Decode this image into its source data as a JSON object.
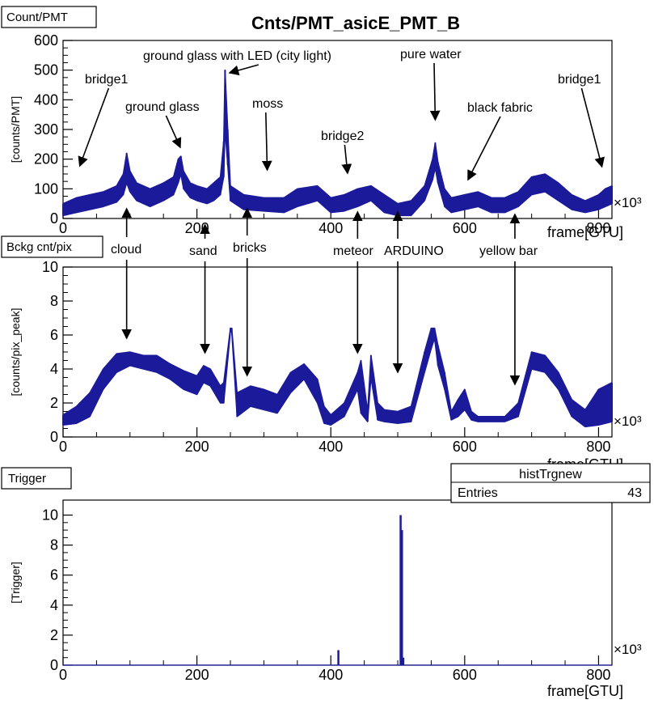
{
  "title": "Cnts/PMT_asicE_PMT_B",
  "axis_exponent": "×10³",
  "stats_box": {
    "title": "histTrgnew",
    "entries_label": "Entries",
    "entries_value": "43"
  },
  "colors": {
    "series": "#1a1a9a",
    "axis": "#000000"
  },
  "chart_data": [
    {
      "type": "area",
      "panel_label": "Count/PMT",
      "ylabel": "[counts/PMT]",
      "xlabel": "frame[GTU]",
      "xlim": [
        0,
        820
      ],
      "ylim": [
        0,
        600
      ],
      "x_ticks": [
        0,
        200,
        400,
        600,
        800
      ],
      "y_ticks": [
        0,
        100,
        200,
        300,
        400,
        500,
        600
      ],
      "x": [
        0,
        20,
        40,
        60,
        80,
        90,
        95,
        100,
        110,
        130,
        150,
        165,
        172,
        176,
        180,
        190,
        200,
        215,
        225,
        235,
        240,
        242,
        246,
        250,
        270,
        300,
        330,
        350,
        380,
        400,
        420,
        440,
        460,
        480,
        500,
        520,
        540,
        552,
        556,
        560,
        570,
        580,
        600,
        620,
        640,
        660,
        680,
        700,
        720,
        740,
        760,
        780,
        800,
        810,
        820
      ],
      "low": [
        10,
        20,
        30,
        40,
        55,
        80,
        120,
        90,
        60,
        40,
        60,
        80,
        120,
        150,
        100,
        70,
        60,
        50,
        60,
        80,
        140,
        300,
        180,
        60,
        30,
        25,
        20,
        40,
        60,
        20,
        25,
        40,
        60,
        20,
        10,
        10,
        60,
        130,
        170,
        120,
        40,
        20,
        30,
        40,
        20,
        20,
        40,
        80,
        90,
        60,
        30,
        20,
        30,
        40,
        50
      ],
      "high": [
        50,
        70,
        80,
        90,
        110,
        150,
        220,
        160,
        120,
        100,
        120,
        140,
        200,
        210,
        160,
        120,
        110,
        100,
        120,
        140,
        260,
        500,
        300,
        110,
        80,
        70,
        70,
        100,
        110,
        70,
        80,
        100,
        110,
        80,
        50,
        60,
        110,
        200,
        255,
        190,
        100,
        70,
        80,
        90,
        70,
        70,
        90,
        140,
        150,
        120,
        80,
        60,
        80,
        100,
        110
      ],
      "annotations": [
        {
          "label": "bridge1",
          "x": 25,
          "y": 130
        },
        {
          "label": "ground glass",
          "x": 175,
          "y": 210
        },
        {
          "label": "ground glass with LED (city light)",
          "x": 244,
          "y": 500
        },
        {
          "label": "moss",
          "x": 305,
          "y": 120
        },
        {
          "label": "bridge2",
          "x": 425,
          "y": 100
        },
        {
          "label": "pure water",
          "x": 556,
          "y": 250
        },
        {
          "label": "black fabric",
          "x": 605,
          "y": 110
        },
        {
          "label": "bridge1",
          "x": 805,
          "y": 130
        },
        {
          "label": "cloud",
          "x": 95,
          "y": 90
        },
        {
          "label": "sand",
          "x": 212,
          "y": 80
        },
        {
          "label": "bricks",
          "x": 275,
          "y": 80
        },
        {
          "label": "meteor",
          "x": 440,
          "y": 90
        },
        {
          "label": "ARDUINO",
          "x": 500,
          "y": 90
        },
        {
          "label": "yellow bar",
          "x": 675,
          "y": 80
        }
      ]
    },
    {
      "type": "area",
      "panel_label": "Bckg cnt/pix",
      "ylabel": "[counts/pix_peak]",
      "xlabel": "frame[GTU]",
      "xlim": [
        0,
        820
      ],
      "ylim": [
        0,
        10
      ],
      "x_ticks": [
        0,
        200,
        400,
        600,
        800
      ],
      "y_ticks": [
        0,
        2,
        4,
        6,
        8,
        10
      ],
      "x": [
        0,
        20,
        40,
        60,
        80,
        100,
        120,
        140,
        160,
        180,
        200,
        210,
        220,
        235,
        240,
        250,
        252,
        260,
        280,
        300,
        320,
        340,
        360,
        380,
        390,
        400,
        420,
        440,
        445,
        455,
        460,
        470,
        480,
        500,
        520,
        540,
        550,
        555,
        560,
        570,
        580,
        590,
        600,
        610,
        620,
        640,
        660,
        680,
        700,
        720,
        740,
        760,
        780,
        800,
        820
      ],
      "low": [
        0.7,
        0.8,
        1.2,
        2.8,
        3.8,
        4.2,
        4.0,
        3.8,
        3.4,
        2.8,
        2.5,
        3.2,
        3.0,
        2.0,
        2.0,
        6.2,
        6.2,
        1.2,
        1.8,
        1.6,
        1.4,
        2.6,
        3.4,
        2.0,
        0.8,
        0.7,
        1.2,
        2.8,
        1.4,
        0.9,
        3.5,
        1.0,
        0.9,
        0.8,
        0.9,
        3.8,
        5.2,
        5.8,
        4.2,
        2.8,
        1.0,
        1.2,
        1.6,
        1.0,
        0.9,
        0.9,
        0.9,
        1.2,
        4.0,
        3.8,
        2.8,
        1.2,
        0.6,
        0.7,
        0.9
      ],
      "high": [
        1.3,
        1.8,
        2.6,
        4.0,
        4.9,
        5.0,
        4.8,
        4.8,
        4.3,
        3.9,
        3.6,
        4.2,
        4.0,
        3.0,
        3.2,
        6.4,
        6.4,
        2.6,
        3.0,
        2.8,
        2.5,
        3.8,
        4.3,
        3.4,
        1.8,
        1.3,
        2.0,
        3.8,
        4.5,
        1.5,
        4.8,
        2.0,
        1.6,
        1.5,
        1.8,
        5.0,
        6.4,
        6.4,
        5.4,
        3.8,
        1.5,
        2.2,
        2.8,
        1.5,
        1.2,
        1.2,
        1.2,
        2.0,
        5.0,
        4.8,
        3.8,
        2.2,
        1.6,
        2.8,
        3.2
      ],
      "annotations": []
    },
    {
      "type": "bar",
      "panel_label": "Trigger",
      "ylabel": "[Trigger]",
      "xlabel": "frame[GTU]",
      "xlim": [
        0,
        820
      ],
      "ylim": [
        0,
        11
      ],
      "x_ticks": [
        0,
        200,
        400,
        600,
        800
      ],
      "y_ticks": [
        0,
        2,
        4,
        6,
        8,
        10
      ],
      "x": [
        411,
        504,
        506,
        508
      ],
      "values": [
        1,
        10,
        9,
        0.5
      ]
    }
  ]
}
